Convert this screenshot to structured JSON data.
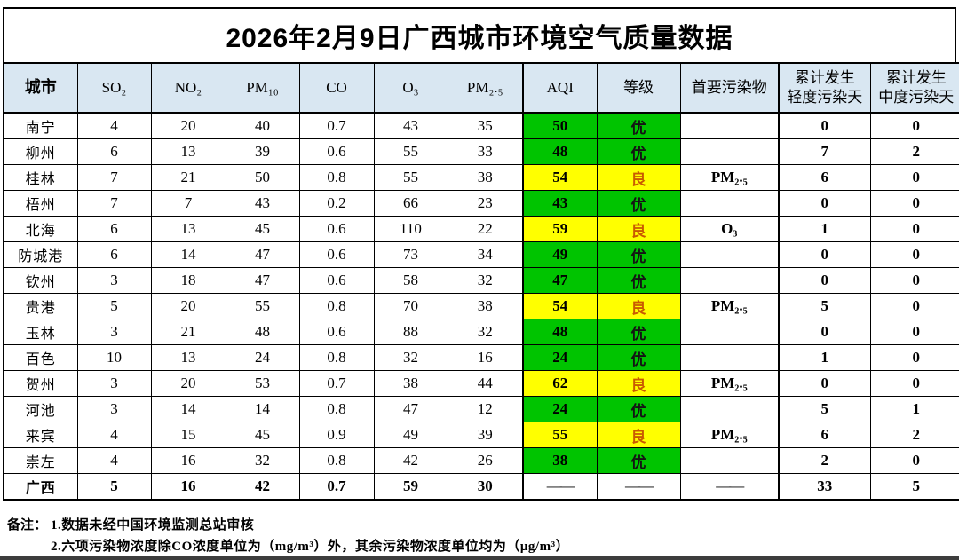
{
  "title": "2026年2月9日广西城市环境空气质量数据",
  "colors": {
    "header_bg": "#d9e7f2",
    "aqi_green": "#00c400",
    "aqi_yellow": "#ffff00",
    "grade_good_text": "#c95a00",
    "border": "#000000"
  },
  "table": {
    "columns": [
      {
        "key": "city",
        "label": "城市"
      },
      {
        "key": "so2",
        "label": "SO₂"
      },
      {
        "key": "no2",
        "label": "NO₂"
      },
      {
        "key": "pm10",
        "label": "PM₁₀"
      },
      {
        "key": "co",
        "label": "CO"
      },
      {
        "key": "o3",
        "label": "O₃"
      },
      {
        "key": "pm25",
        "label": "PM₂.₅"
      },
      {
        "key": "aqi",
        "label": "AQI"
      },
      {
        "key": "grade",
        "label": "等级"
      },
      {
        "key": "primary",
        "label": "首要污染物"
      },
      {
        "key": "light",
        "label": "累计发生\n轻度污染天"
      },
      {
        "key": "moderate",
        "label": "累计发生\n中度污染天"
      }
    ],
    "rows": [
      {
        "city": "南宁",
        "so2": "4",
        "no2": "20",
        "pm10": "40",
        "co": "0.7",
        "o3": "43",
        "pm25": "35",
        "aqi": "50",
        "grade": "优",
        "level": "excellent",
        "primary": "",
        "light": "0",
        "moderate": "0"
      },
      {
        "city": "柳州",
        "so2": "6",
        "no2": "13",
        "pm10": "39",
        "co": "0.6",
        "o3": "55",
        "pm25": "33",
        "aqi": "48",
        "grade": "优",
        "level": "excellent",
        "primary": "",
        "light": "7",
        "moderate": "2"
      },
      {
        "city": "桂林",
        "so2": "7",
        "no2": "21",
        "pm10": "50",
        "co": "0.8",
        "o3": "55",
        "pm25": "38",
        "aqi": "54",
        "grade": "良",
        "level": "good",
        "primary": "PM₂.₅",
        "light": "6",
        "moderate": "0"
      },
      {
        "city": "梧州",
        "so2": "7",
        "no2": "7",
        "pm10": "43",
        "co": "0.2",
        "o3": "66",
        "pm25": "23",
        "aqi": "43",
        "grade": "优",
        "level": "excellent",
        "primary": "",
        "light": "0",
        "moderate": "0"
      },
      {
        "city": "北海",
        "so2": "6",
        "no2": "13",
        "pm10": "45",
        "co": "0.6",
        "o3": "110",
        "pm25": "22",
        "aqi": "59",
        "grade": "良",
        "level": "good",
        "primary": "O₃",
        "light": "1",
        "moderate": "0"
      },
      {
        "city": "防城港",
        "so2": "6",
        "no2": "14",
        "pm10": "47",
        "co": "0.6",
        "o3": "73",
        "pm25": "34",
        "aqi": "49",
        "grade": "优",
        "level": "excellent",
        "primary": "",
        "light": "0",
        "moderate": "0"
      },
      {
        "city": "钦州",
        "so2": "3",
        "no2": "18",
        "pm10": "47",
        "co": "0.6",
        "o3": "58",
        "pm25": "32",
        "aqi": "47",
        "grade": "优",
        "level": "excellent",
        "primary": "",
        "light": "0",
        "moderate": "0"
      },
      {
        "city": "贵港",
        "so2": "5",
        "no2": "20",
        "pm10": "55",
        "co": "0.8",
        "o3": "70",
        "pm25": "38",
        "aqi": "54",
        "grade": "良",
        "level": "good",
        "primary": "PM₂.₅",
        "light": "5",
        "moderate": "0"
      },
      {
        "city": "玉林",
        "so2": "3",
        "no2": "21",
        "pm10": "48",
        "co": "0.6",
        "o3": "88",
        "pm25": "32",
        "aqi": "48",
        "grade": "优",
        "level": "excellent",
        "primary": "",
        "light": "0",
        "moderate": "0"
      },
      {
        "city": "百色",
        "so2": "10",
        "no2": "13",
        "pm10": "24",
        "co": "0.8",
        "o3": "32",
        "pm25": "16",
        "aqi": "24",
        "grade": "优",
        "level": "excellent",
        "primary": "",
        "light": "1",
        "moderate": "0"
      },
      {
        "city": "贺州",
        "so2": "3",
        "no2": "20",
        "pm10": "53",
        "co": "0.7",
        "o3": "38",
        "pm25": "44",
        "aqi": "62",
        "grade": "良",
        "level": "good",
        "primary": "PM₂.₅",
        "light": "0",
        "moderate": "0"
      },
      {
        "city": "河池",
        "so2": "3",
        "no2": "14",
        "pm10": "14",
        "co": "0.8",
        "o3": "47",
        "pm25": "12",
        "aqi": "24",
        "grade": "优",
        "level": "excellent",
        "primary": "",
        "light": "5",
        "moderate": "1"
      },
      {
        "city": "来宾",
        "so2": "4",
        "no2": "15",
        "pm10": "45",
        "co": "0.9",
        "o3": "49",
        "pm25": "39",
        "aqi": "55",
        "grade": "良",
        "level": "good",
        "primary": "PM₂.₅",
        "light": "6",
        "moderate": "2"
      },
      {
        "city": "崇左",
        "so2": "4",
        "no2": "16",
        "pm10": "32",
        "co": "0.8",
        "o3": "42",
        "pm25": "26",
        "aqi": "38",
        "grade": "优",
        "level": "excellent",
        "primary": "",
        "light": "2",
        "moderate": "0"
      }
    ],
    "summary_row": {
      "city": "广西",
      "so2": "5",
      "no2": "16",
      "pm10": "42",
      "co": "0.7",
      "o3": "59",
      "pm25": "30",
      "aqi": "——",
      "grade": "——",
      "level": "none",
      "primary": "——",
      "light": "33",
      "moderate": "5"
    }
  },
  "notes": {
    "label": "备注：",
    "items": [
      "1.数据未经中国环境监测总站审核",
      "2.六项污染物浓度除CO浓度单位为（mg/m³）外，其余污染物浓度单位均为（μg/m³）"
    ]
  }
}
